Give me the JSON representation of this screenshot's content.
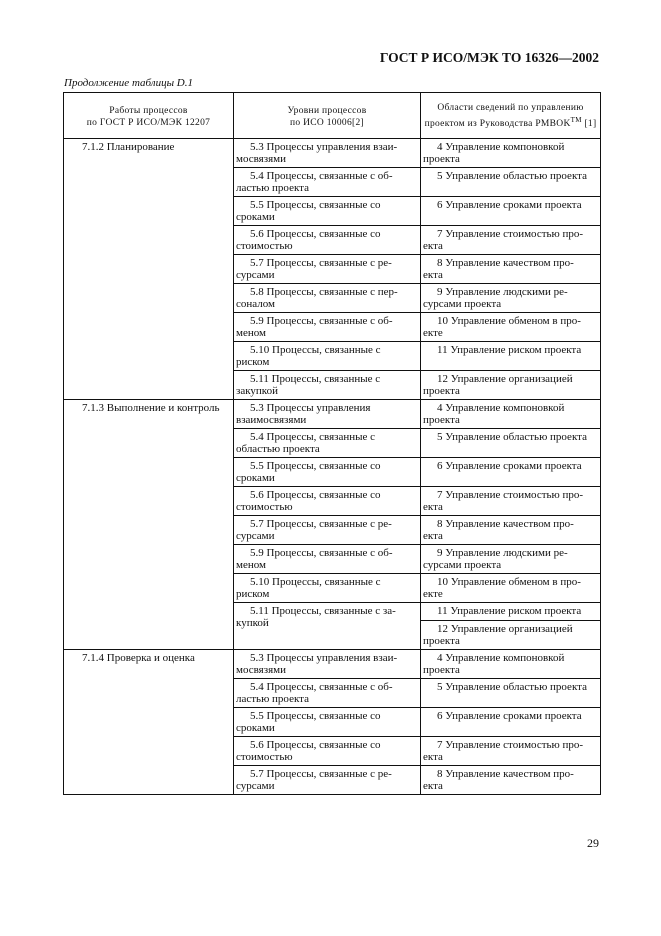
{
  "header": {
    "doc_id": "ГОСТ Р ИСО/МЭК ТО 16326—2002"
  },
  "caption": "Продолжение таблицы D.1",
  "table": {
    "columns": [
      {
        "line1": "Работы процессов",
        "line2": "по ГОСТ Р ИСО/МЭК 12207"
      },
      {
        "line1": "Уровни процессов",
        "line2": "по ИСО 10006[2]"
      },
      {
        "line1": "Области сведений по управлению",
        "line2": "проектом из Руководства PMBOK",
        "sup": "TM",
        "ref": " [1]"
      }
    ],
    "sections": [
      {
        "activity": "7.1.2 Планирование",
        "rows": [
          {
            "level": "5.3 Процессы управления взаи-\nмосвязями",
            "areas": [
              "4 Управление компоновкой\nпроекта"
            ]
          },
          {
            "level": "5.4 Процессы, связанные с об-\nластью проекта",
            "areas": [
              "5 Управление областью проекта"
            ]
          },
          {
            "level": "5.5 Процессы, связанные со\nсроками",
            "areas": [
              "6 Управление сроками проекта"
            ]
          },
          {
            "level": "5.6 Процессы, связанные со\nстоимостью",
            "areas": [
              "7 Управление стоимостью про-\nекта"
            ]
          },
          {
            "level": "5.7 Процессы, связанные с ре-\nсурсами",
            "areas": [
              "8 Управление качеством про-\nекта"
            ]
          },
          {
            "level": "5.8 Процессы, связанные с пер-\nсоналом",
            "areas": [
              "9 Управление людскими ре-\nсурсами проекта"
            ]
          },
          {
            "level": "5.9 Процессы, связанные с об-\nменом",
            "areas": [
              "10 Управление обменом в про-\nекте"
            ]
          },
          {
            "level": "5.10 Процессы, связанные с\nриском",
            "areas": [
              "11 Управление риском проекта"
            ]
          },
          {
            "level": "5.11 Процессы, связанные с\nзакупкой",
            "areas": [
              "12 Управление организацией\nпроекта"
            ]
          }
        ]
      },
      {
        "activity": "7.1.3 Выполнение и контроль",
        "rows": [
          {
            "level": "5.3 Процессы управления\nвзаимосвязями",
            "areas": [
              "4 Управление компоновкой\nпроекта"
            ]
          },
          {
            "level": "5.4 Процессы, связанные с\nобластью проекта",
            "areas": [
              "5 Управление областью проекта"
            ]
          },
          {
            "level": "5.5 Процессы, связанные со\nсроками",
            "areas": [
              "6 Управление сроками проекта"
            ]
          },
          {
            "level": "5.6 Процессы, связанные со\nстоимостью",
            "areas": [
              "7 Управление стоимостью про-\nекта"
            ]
          },
          {
            "level": "5.7 Процессы, связанные с ре-\nсурсами",
            "areas": [
              "8 Управление качеством про-\nекта"
            ]
          },
          {
            "level": "5.9 Процессы, связанные с об-\nменом",
            "areas": [
              "9 Управление людскими ре-\nсурсами проекта"
            ]
          },
          {
            "level": "5.10 Процессы, связанные с\nриском",
            "areas": [
              "10 Управление обменом в про-\nекте"
            ]
          },
          {
            "level": "5.11 Процессы, связанные с за-\nкупкой",
            "areas": [
              "11 Управление риском проекта",
              "12 Управление организацией\nпроекта"
            ]
          }
        ]
      },
      {
        "activity": "7.1.4 Проверка и оценка",
        "rows": [
          {
            "level": "5.3 Процессы управления взаи-\nмосвязями",
            "areas": [
              "4 Управление компоновкой\nпроекта"
            ]
          },
          {
            "level": "5.4 Процессы, связанные с об-\nластью проекта",
            "areas": [
              "5 Управление областью проекта"
            ]
          },
          {
            "level": "5.5 Процессы, связанные со\nсроками",
            "areas": [
              "6 Управление сроками проекта"
            ]
          },
          {
            "level": "5.6 Процессы, связанные со\nстоимостью",
            "areas": [
              "7 Управление стоимостью про-\nекта"
            ]
          },
          {
            "level": "5.7 Процессы, связанные с ре-\nсурсами",
            "areas": [
              "8 Управление качеством про-\nекта"
            ]
          }
        ]
      }
    ]
  },
  "page_number": "29"
}
